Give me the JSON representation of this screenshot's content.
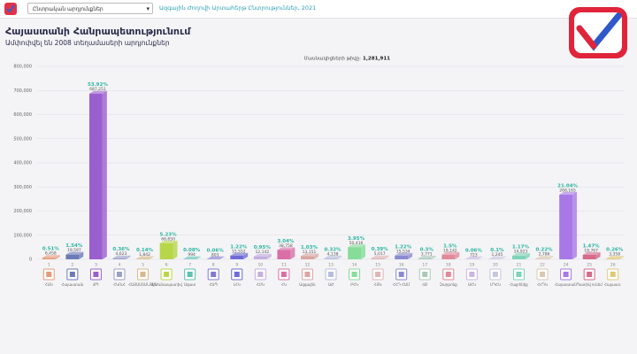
{
  "header": {
    "dropdown": "Ընտրական արդյունքներ",
    "link": "Ազգային Ժողովի Արտահերթ Ընտրություններ, 2021",
    "title": "Հայաստանի Հանրապետությունում",
    "subtitle": "Ամփոփվել են 2008 տեղամասերի արդյունքներ"
  },
  "chart_data": {
    "type": "bar",
    "participants_label": "Մասնակիցների թիվը:",
    "participants": "1,281,911",
    "categories": [
      "1",
      "2",
      "3",
      "4",
      "5",
      "6",
      "7",
      "8",
      "9",
      "10",
      "11",
      "12",
      "13",
      "14",
      "15",
      "16",
      "17",
      "18",
      "19",
      "20",
      "21",
      "22",
      "24",
      "25",
      "26"
    ],
    "party_names": [
      "ՀԱԿ",
      "Հայաստան",
      "ՔՊ",
      "ՀԿՈւՀ",
      "ՀԱՅԱՍՏԱՆՅԱՆ",
      "Արժանապատիվ",
      "Ազատ",
      "ՀԱՊ",
      "ԼՀԿ",
      "ՀՄԿ",
      "ՀԿ",
      "Ազգային",
      "ԱԺ",
      "ԲՀԿ",
      "ՀՅԿ",
      "ՀՀԴ ՀԱՄ",
      "ՀՔ",
      "Զարթոնք",
      "ԱՀԿ",
      "ՍԴՀԿ",
      "Հայրենիք",
      "ՀՀԴԿ",
      "Հայաստան",
      "Պատիվ ունեմ",
      "Հայաստ."
    ],
    "values": [
      6458,
      19597,
      687251,
      4623,
      1842,
      66650,
      994,
      803,
      15552,
      12142,
      38758,
      13151,
      4138,
      50416,
      5017,
      15534,
      3771,
      19142,
      723,
      1245,
      14923,
      2786,
      268165,
      18767,
      3358
    ],
    "value_labels": [
      "6,458",
      "19,597",
      "687,251",
      "4,623",
      "1,842",
      "66,650",
      "994",
      "803",
      "15,552",
      "12,142",
      "38,758",
      "13,151",
      "4,138",
      "50,416",
      "5,017",
      "15,534",
      "3,771",
      "19,142",
      "723",
      "1,245",
      "14,923",
      "2,786",
      "268,165",
      "18,767",
      "3,358"
    ],
    "percent_labels": [
      "0.51%",
      "1.54%",
      "53.92%",
      "0.36%",
      "0.14%",
      "5.23%",
      "0.08%",
      "0.06%",
      "1.22%",
      "0.95%",
      "3.04%",
      "1.03%",
      "0.32%",
      "3.95%",
      "0.39%",
      "1.22%",
      "0.3%",
      "1.5%",
      "0.06%",
      "0.1%",
      "1.17%",
      "0.22%",
      "21.04%",
      "1.47%",
      "0.26%"
    ],
    "colors": [
      "#e79a7a",
      "#6c7ab8",
      "#9a5fcf",
      "#9aa0c8",
      "#d9b88a",
      "#b8d64a",
      "#5cc2b0",
      "#7f7bd0",
      "#6f6bd6",
      "#c3aee0",
      "#d86fa6",
      "#d9a6a0",
      "#b7bedd",
      "#86dd9a",
      "#e0b5b5",
      "#8a8ad0",
      "#a9c8b8",
      "#e08a9a",
      "#c9b6e0",
      "#c7c7dd",
      "#7ed3b8",
      "#d8c8b0",
      "#a878e6",
      "#d66a8a",
      "#e0c878"
    ],
    "ylim": [
      0,
      800000
    ],
    "yticks": [
      {
        "value": 0,
        "label": "0"
      },
      {
        "value": 100000,
        "label": "100,000"
      },
      {
        "value": 200000,
        "label": "200,000"
      },
      {
        "value": 300000,
        "label": "300,000"
      },
      {
        "value": 400000,
        "label": "400,000"
      },
      {
        "value": 500000,
        "label": "500,000"
      },
      {
        "value": 600000,
        "label": "600,000"
      },
      {
        "value": 700000,
        "label": "700,000"
      },
      {
        "value": 800000,
        "label": "800,000"
      }
    ],
    "grid": true
  }
}
